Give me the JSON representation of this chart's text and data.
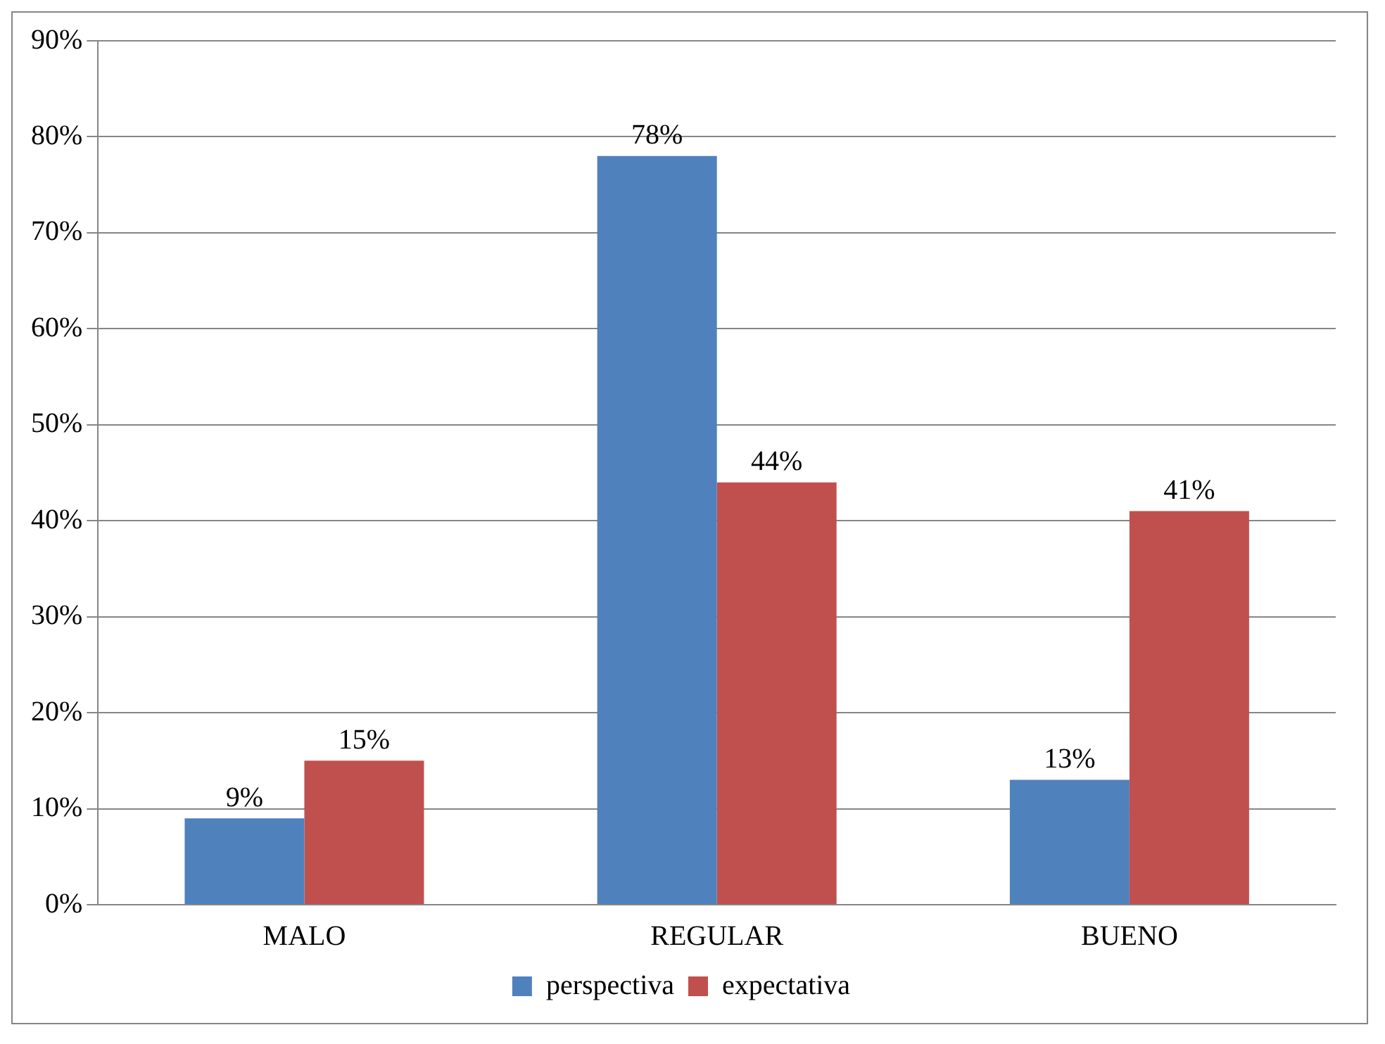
{
  "chart_data": {
    "type": "bar",
    "categories": [
      "MALO",
      "REGULAR",
      "BUENO"
    ],
    "series": [
      {
        "name": "perspectiva",
        "color": "#4f81bd",
        "values": [
          9,
          78,
          13
        ],
        "value_labels": [
          "9%",
          "78%",
          "13%"
        ]
      },
      {
        "name": "expectativa",
        "color": "#c0504d",
        "values": [
          15,
          44,
          41
        ],
        "value_labels": [
          "15%",
          "44%",
          "41%"
        ]
      }
    ],
    "ylim": [
      0,
      90
    ],
    "yticks": [
      {
        "value": 0,
        "label": "0%"
      },
      {
        "value": 10,
        "label": "10%"
      },
      {
        "value": 20,
        "label": "20%"
      },
      {
        "value": 30,
        "label": "30%"
      },
      {
        "value": 40,
        "label": "40%"
      },
      {
        "value": 50,
        "label": "50%"
      },
      {
        "value": 60,
        "label": "60%"
      },
      {
        "value": 70,
        "label": "70%"
      },
      {
        "value": 80,
        "label": "80%"
      },
      {
        "value": 90,
        "label": "90%"
      }
    ],
    "grid": "y",
    "legend": "bottom"
  }
}
